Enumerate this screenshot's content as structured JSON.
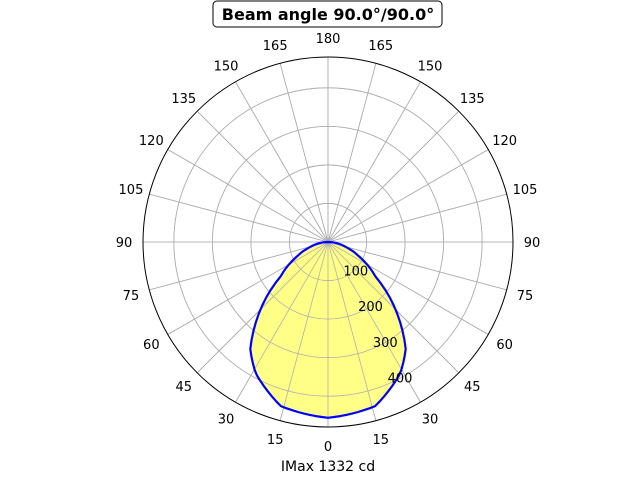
{
  "chart_data": {
    "type": "polar-line",
    "title": "Beam angle 90.0°/90.0°",
    "xlabel": "IMax 1332 cd",
    "angle_tick_labels": [
      "0",
      "15",
      "30",
      "45",
      "60",
      "75",
      "90",
      "105",
      "120",
      "135",
      "150",
      "165",
      "180"
    ],
    "radial_tick_labels": [
      "100",
      "200",
      "300",
      "400"
    ],
    "radial_ticks": [
      100,
      200,
      300,
      400
    ],
    "rlim": [
      0,
      480
    ],
    "angle_zero": "bottom",
    "grid": true,
    "series": [
      {
        "angles_deg": [
          0,
          16,
          29,
          36,
          45,
          54,
          65,
          75,
          90
        ],
        "values": [
          456,
          443,
          388,
          343,
          248,
          152,
          89,
          45,
          0
        ],
        "symmetric": true,
        "line_color": "#0000ff",
        "fill_color": "#ffff88"
      }
    ]
  }
}
